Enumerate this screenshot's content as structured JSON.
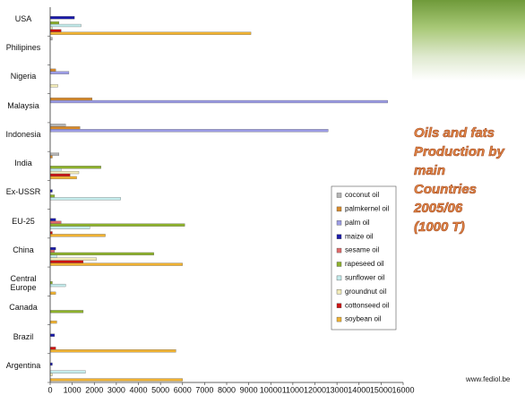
{
  "chart_data": {
    "type": "hbar",
    "title": [
      "Oils and fats",
      "Production by",
      "main",
      "Countries",
      "2005/06",
      "(1000 T)"
    ],
    "source": "www.fediol.be",
    "categories": [
      "USA",
      "Philipines",
      "Nigeria",
      "Malaysia",
      "Indonesia",
      "India",
      "Ex-USSR",
      "EU-25",
      "China",
      "Central Europe",
      "Canada",
      "Brazil",
      "Argentina"
    ],
    "series": [
      {
        "name": "coconut oil",
        "color": "#b4b4b4",
        "values": [
          0,
          100,
          0,
          0,
          700,
          400,
          0,
          0,
          0,
          0,
          0,
          0,
          0
        ]
      },
      {
        "name": "palmkernel oil",
        "color": "#d88a2a",
        "values": [
          0,
          0,
          250,
          1900,
          1350,
          100,
          0,
          0,
          0,
          0,
          0,
          0,
          0
        ]
      },
      {
        "name": "palm oil",
        "color": "#9c9ce4",
        "values": [
          0,
          0,
          850,
          15300,
          12600,
          0,
          0,
          0,
          0,
          0,
          0,
          0,
          0
        ]
      },
      {
        "name": "maize oil",
        "color": "#1a1aa8",
        "values": [
          1100,
          0,
          0,
          0,
          0,
          0,
          100,
          250,
          250,
          0,
          0,
          200,
          100
        ]
      },
      {
        "name": "sesame oil",
        "color": "#e06a6a",
        "values": [
          0,
          0,
          0,
          0,
          0,
          0,
          0,
          500,
          200,
          0,
          0,
          0,
          0
        ]
      },
      {
        "name": "rapeseed oil",
        "color": "#8db12c",
        "values": [
          400,
          0,
          0,
          0,
          0,
          2300,
          200,
          6100,
          4700,
          100,
          1500,
          0,
          0
        ]
      },
      {
        "name": "sunflower oil",
        "color": "#c4ecec",
        "values": [
          1400,
          0,
          0,
          0,
          0,
          500,
          3200,
          1800,
          300,
          700,
          0,
          0,
          1600
        ]
      },
      {
        "name": "groundnut oil",
        "color": "#f2ebb8",
        "values": [
          100,
          0,
          350,
          0,
          0,
          1300,
          0,
          0,
          2100,
          0,
          0,
          0,
          100
        ]
      },
      {
        "name": "cottonseed oil",
        "color": "#cc1212",
        "values": [
          500,
          0,
          0,
          0,
          0,
          900,
          0,
          100,
          1500,
          0,
          0,
          250,
          0
        ]
      },
      {
        "name": "soybean oil",
        "color": "#f0b232",
        "values": [
          9100,
          0,
          0,
          0,
          0,
          1200,
          0,
          2500,
          6000,
          250,
          300,
          5700,
          6000
        ]
      }
    ],
    "xlim": [
      0,
      16000
    ],
    "xticks": [
      0,
      1000,
      2000,
      3000,
      4000,
      5000,
      6000,
      7000,
      8000,
      9000,
      10000,
      11000,
      12000,
      13000,
      14000,
      15000,
      16000
    ]
  }
}
